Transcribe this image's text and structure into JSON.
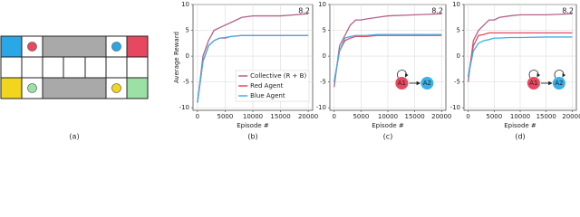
{
  "diagram": {
    "label": "(a)"
  },
  "chart_data": [
    {
      "type": "line",
      "caption": "(b)",
      "y_label": "Average Reward",
      "x_label": "Episode #",
      "annotation": "8.2",
      "x": [
        0,
        1000,
        2000,
        3000,
        4000,
        5000,
        6000,
        8000,
        10000,
        15000,
        20000
      ],
      "series": [
        {
          "name": "Collective (R + B)",
          "color": "#b5608a",
          "values": [
            -9,
            0,
            3,
            5,
            5.5,
            6,
            6.5,
            7.5,
            7.8,
            7.8,
            8.2
          ]
        },
        {
          "name": "Red Agent",
          "color": "#e8485f",
          "values": [
            -9,
            -1,
            2,
            3,
            3.5,
            3.5,
            3.8,
            4,
            4,
            4,
            4
          ]
        },
        {
          "name": "Blue Agent",
          "color": "#3ab0e8",
          "values": [
            -9,
            -1,
            2,
            3,
            3.5,
            3.6,
            3.8,
            4,
            4,
            4,
            4
          ]
        }
      ],
      "xlim": [
        -800,
        20800
      ],
      "xticks": [
        0,
        5000,
        10000,
        15000,
        20000
      ],
      "ylim": [
        -10.5,
        10
      ],
      "yticks": [
        -10,
        -5,
        0,
        5,
        10
      ],
      "grid": true,
      "legend": "lower right"
    },
    {
      "type": "line",
      "caption": "(c)",
      "x_label": "Episode #",
      "annotation": "8.2",
      "graph_nodes": [
        "A1",
        "A2"
      ],
      "graph_self_loops": [
        true,
        false
      ],
      "x": [
        0,
        1000,
        2000,
        3000,
        4000,
        5000,
        6000,
        8000,
        10000,
        15000,
        20000
      ],
      "series": [
        {
          "name": "Collective (R + B)",
          "color": "#b5608a",
          "values": [
            -6,
            2,
            4,
            6,
            7,
            7,
            7.2,
            7.5,
            7.8,
            8,
            8.2
          ]
        },
        {
          "name": "Red Agent",
          "color": "#e8485f",
          "values": [
            -5,
            1,
            3,
            3.5,
            3.8,
            3.8,
            3.8,
            4,
            4,
            4,
            4
          ]
        },
        {
          "name": "Blue Agent",
          "color": "#3ab0e8",
          "values": [
            -5,
            1,
            3.5,
            3.8,
            4,
            4,
            4,
            4.2,
            4.2,
            4.2,
            4.2
          ]
        }
      ],
      "xlim": [
        -800,
        20800
      ],
      "xticks": [
        0,
        5000,
        10000,
        15000,
        20000
      ],
      "ylim": [
        -10.5,
        10
      ],
      "yticks": [
        -10,
        -5,
        0,
        5,
        10
      ],
      "grid": true
    },
    {
      "type": "line",
      "caption": "(d)",
      "x_label": "Episode #",
      "annotation": "8.2",
      "graph_nodes": [
        "A1",
        "A2"
      ],
      "graph_self_loops": [
        true,
        true
      ],
      "x": [
        0,
        1000,
        2000,
        3000,
        4000,
        5000,
        6000,
        8000,
        10000,
        15000,
        20000
      ],
      "series": [
        {
          "name": "Collective (R + B)",
          "color": "#b5608a",
          "values": [
            -5,
            3,
            5,
            6,
            7,
            7,
            7.5,
            7.8,
            8,
            8,
            8.2
          ]
        },
        {
          "name": "Red Agent",
          "color": "#e8485f",
          "values": [
            -4,
            2,
            4,
            4.2,
            4.5,
            4.5,
            4.5,
            4.5,
            4.5,
            4.5,
            4.5
          ]
        },
        {
          "name": "Blue Agent",
          "color": "#3ab0e8",
          "values": [
            -4,
            1,
            2.5,
            3,
            3.2,
            3.5,
            3.5,
            3.6,
            3.6,
            3.7,
            3.7
          ]
        }
      ],
      "xlim": [
        -800,
        20800
      ],
      "xticks": [
        0,
        5000,
        10000,
        15000,
        20000
      ],
      "ylim": [
        -10.5,
        10
      ],
      "yticks": [
        -10,
        -5,
        0,
        5,
        10
      ],
      "grid": true
    }
  ]
}
